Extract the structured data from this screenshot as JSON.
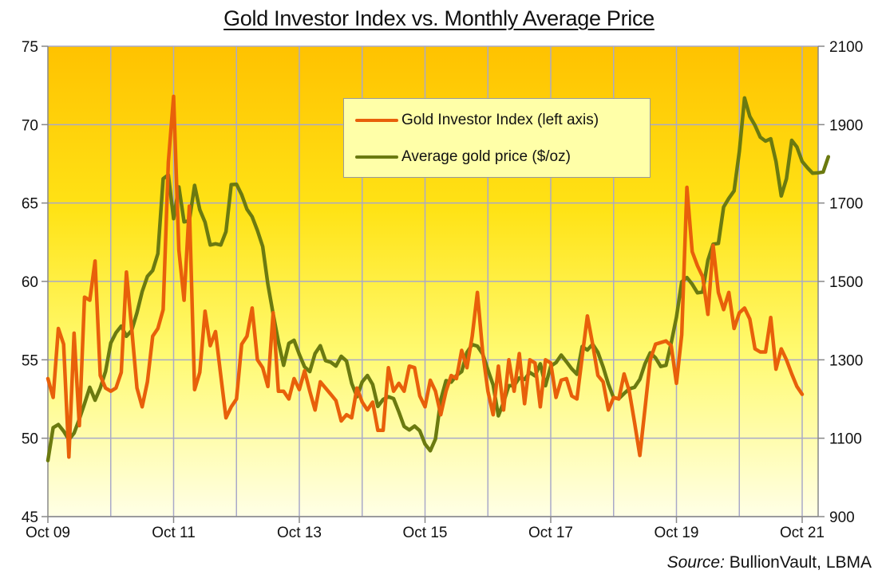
{
  "chart_data": {
    "type": "line",
    "title": "Gold Investor Index vs. Monthly Average Price",
    "source_label": "Source:",
    "source_text": "BullionVault, LBMA",
    "xlabel": "",
    "ylabel_left": "",
    "ylabel_right": "",
    "x_tick_labels": [
      "Oct 09",
      "Oct 11",
      "Oct 13",
      "Oct 15",
      "Oct 17",
      "Oct 19",
      "Oct 21"
    ],
    "y_left": {
      "range": [
        45,
        75
      ],
      "ticks": [
        45,
        50,
        55,
        60,
        65,
        70,
        75
      ]
    },
    "y_right": {
      "range": [
        900,
        2100
      ],
      "ticks": [
        900,
        1100,
        1300,
        1500,
        1700,
        1900,
        2100
      ]
    },
    "grid": true,
    "legend_position": "upper-center",
    "x_start": "Oct 2009",
    "x_step": "monthly",
    "series": [
      {
        "name": "Gold Investor Index (left axis)",
        "axis": "left",
        "color": "#E8600A",
        "values": [
          53.8,
          52.6,
          57.0,
          56.0,
          48.8,
          56.7,
          50.8,
          59.0,
          58.8,
          61.3,
          54.0,
          53.2,
          53.0,
          53.2,
          54.2,
          60.6,
          57.0,
          53.2,
          52.0,
          53.6,
          56.5,
          57.0,
          58.2,
          67.6,
          71.8,
          62.0,
          58.8,
          64.8,
          53.1,
          54.2,
          58.1,
          55.9,
          56.8,
          54.0,
          51.3,
          52.0,
          52.5,
          56.0,
          56.5,
          58.3,
          55.0,
          54.5,
          53.3,
          58.0,
          53.0,
          53.0,
          52.5,
          53.8,
          53.1,
          54.3,
          53.0,
          51.8,
          53.6,
          53.2,
          52.8,
          52.4,
          51.1,
          51.5,
          51.3,
          53.2,
          52.3,
          51.8,
          52.3,
          50.5,
          50.5,
          54.5,
          53.0,
          53.5,
          53.0,
          54.6,
          54.5,
          52.7,
          52.0,
          53.7,
          53.0,
          51.5,
          53.0,
          54.0,
          53.8,
          55.6,
          54.5,
          56.5,
          59.3,
          55.5,
          53.0,
          51.5,
          54.6,
          51.8,
          55.0,
          53.0,
          55.4,
          52.2,
          55.0,
          54.8,
          52.0,
          55.0,
          54.8,
          52.6,
          53.7,
          53.8,
          52.7,
          52.5,
          55.2,
          57.8,
          56.0,
          54.0,
          53.6,
          51.8,
          52.6,
          52.5,
          54.1,
          53.0,
          51.0,
          48.9,
          51.9,
          55.0,
          56.0,
          56.1,
          56.2,
          55.9,
          53.5,
          56.6,
          66.0,
          61.9,
          61.0,
          60.3,
          57.9,
          62.3,
          59.3,
          58.2,
          59.3,
          57.0,
          58.0,
          58.3,
          57.6,
          55.7,
          55.5,
          55.5,
          57.7,
          54.4,
          55.7,
          55.0,
          54.1,
          53.3,
          52.8
        ]
      },
      {
        "name": "Average gold price ($/oz)",
        "axis": "right",
        "color": "#6B7A10",
        "values": [
          1043,
          1127,
          1135,
          1118,
          1096,
          1113,
          1149,
          1188,
          1230,
          1197,
          1228,
          1270,
          1343,
          1369,
          1386,
          1360,
          1375,
          1420,
          1474,
          1513,
          1528,
          1571,
          1762,
          1772,
          1660,
          1741,
          1652,
          1655,
          1745,
          1683,
          1651,
          1593,
          1596,
          1593,
          1627,
          1747,
          1748,
          1721,
          1684,
          1665,
          1630,
          1589,
          1493,
          1417,
          1346,
          1286,
          1342,
          1350,
          1314,
          1282,
          1270,
          1316,
          1336,
          1298,
          1294,
          1284,
          1309,
          1297,
          1240,
          1206,
          1244,
          1260,
          1237,
          1181,
          1199,
          1206,
          1201,
          1167,
          1130,
          1121,
          1131,
          1119,
          1085,
          1068,
          1098,
          1198,
          1247,
          1243,
          1260,
          1270,
          1319,
          1339,
          1335,
          1315,
          1274,
          1236,
          1157,
          1192,
          1234,
          1234,
          1254,
          1250,
          1268,
          1259,
          1290,
          1234,
          1284,
          1293,
          1312,
          1295,
          1277,
          1263,
          1334,
          1325,
          1340,
          1319,
          1282,
          1238,
          1203,
          1201,
          1214,
          1226,
          1230,
          1250,
          1290,
          1318,
          1305,
          1283,
          1286,
          1343,
          1409,
          1499,
          1510,
          1493,
          1471,
          1473,
          1554,
          1595,
          1597,
          1690,
          1712,
          1731,
          1832,
          1968,
          1921,
          1898,
          1868,
          1858,
          1864,
          1806,
          1718,
          1762,
          1860,
          1843,
          1806,
          1790,
          1776,
          1777,
          1779,
          1818
        ]
      }
    ]
  }
}
